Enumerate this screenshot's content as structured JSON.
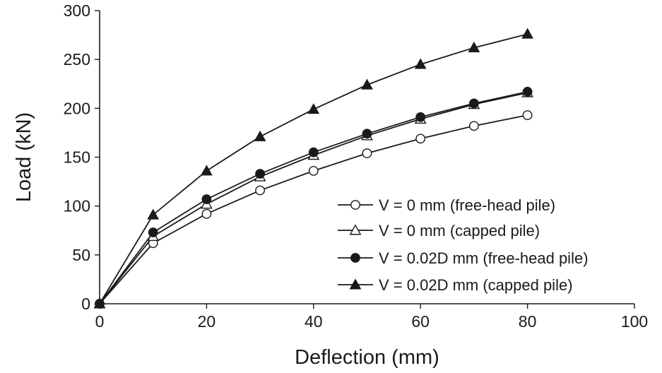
{
  "chart_data": {
    "type": "line",
    "xlabel": "Deflection (mm)",
    "ylabel": "Load (kN)",
    "xlim": [
      0,
      100
    ],
    "ylim": [
      0,
      300
    ],
    "xticks": [
      0,
      20,
      40,
      60,
      80,
      100
    ],
    "yticks": [
      0,
      50,
      100,
      150,
      200,
      250,
      300
    ],
    "grid": false,
    "legend_position": "bottom-right",
    "series": [
      {
        "name": "V = 0 mm (free-head pile)",
        "marker": "circle-open",
        "color": "#1a1a1a",
        "x": [
          0,
          10,
          20,
          30,
          40,
          50,
          60,
          70,
          80
        ],
        "y": [
          0,
          62,
          92,
          116,
          136,
          154,
          169,
          182,
          193
        ]
      },
      {
        "name": "V = 0 mm (capped pile)",
        "marker": "triangle-open",
        "color": "#1a1a1a",
        "x": [
          0,
          10,
          20,
          30,
          40,
          50,
          60,
          70,
          80
        ],
        "y": [
          0,
          69,
          102,
          130,
          152,
          172,
          189,
          204,
          216
        ]
      },
      {
        "name": "V = 0.02D mm (free-head pile)",
        "marker": "circle-filled",
        "color": "#1a1a1a",
        "x": [
          0,
          10,
          20,
          30,
          40,
          50,
          60,
          70,
          80
        ],
        "y": [
          0,
          73,
          107,
          133,
          155,
          174,
          191,
          205,
          217
        ]
      },
      {
        "name": "V = 0.02D mm (capped pile)",
        "marker": "triangle-filled",
        "color": "#1a1a1a",
        "x": [
          0,
          10,
          20,
          30,
          40,
          50,
          60,
          70,
          80
        ],
        "y": [
          0,
          91,
          136,
          171,
          199,
          224,
          245,
          262,
          276
        ]
      }
    ]
  }
}
